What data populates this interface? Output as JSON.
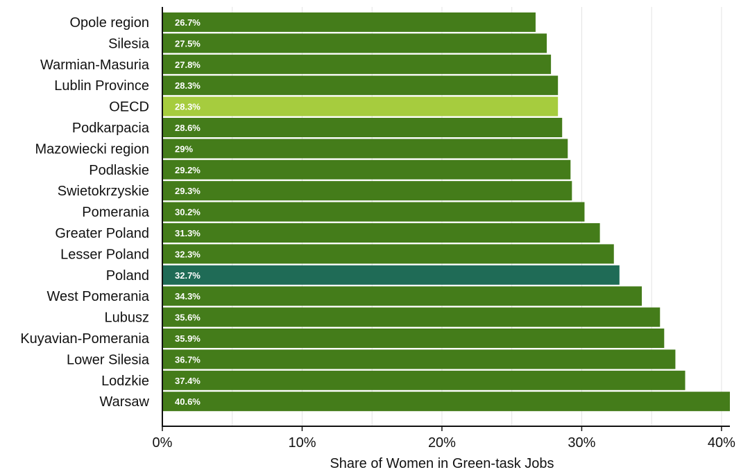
{
  "chart_data": {
    "type": "bar",
    "orientation": "horizontal",
    "xlabel": "Share of Women in Green-task Jobs",
    "ylabel": "",
    "xlim": [
      0,
      40.6
    ],
    "ticks": [
      0,
      10,
      20,
      30,
      40
    ],
    "tick_labels": [
      "0%",
      "10%",
      "20%",
      "30%",
      "40%"
    ],
    "grid": "vertical",
    "categories": [
      "Opole region",
      "Silesia",
      "Warmian-Masuria",
      "Lublin Province",
      "OECD",
      "Podkarpacia",
      "Mazowiecki region",
      "Podlaskie",
      "Swietokrzyskie",
      "Pomerania",
      "Greater Poland",
      "Lesser Poland",
      "Poland",
      "West Pomerania",
      "Lubusz",
      "Kuyavian-Pomerania",
      "Lower Silesia",
      "Lodzkie",
      "Warsaw"
    ],
    "values": [
      26.7,
      27.5,
      27.8,
      28.3,
      28.3,
      28.6,
      29.0,
      29.2,
      29.3,
      30.2,
      31.3,
      32.3,
      32.7,
      34.3,
      35.6,
      35.9,
      36.7,
      37.4,
      40.6
    ],
    "data_labels": [
      "26.7%",
      "27.5%",
      "27.8%",
      "28.3%",
      "28.3%",
      "28.6%",
      "29%",
      "29.2%",
      "29.3%",
      "30.2%",
      "31.3%",
      "32.3%",
      "32.7%",
      "34.3%",
      "35.6%",
      "35.9%",
      "36.7%",
      "37.4%",
      "40.6%"
    ],
    "colors": {
      "default": "#447c1a",
      "OECD": "#a6cc3e",
      "Poland": "#1f6b56"
    }
  }
}
